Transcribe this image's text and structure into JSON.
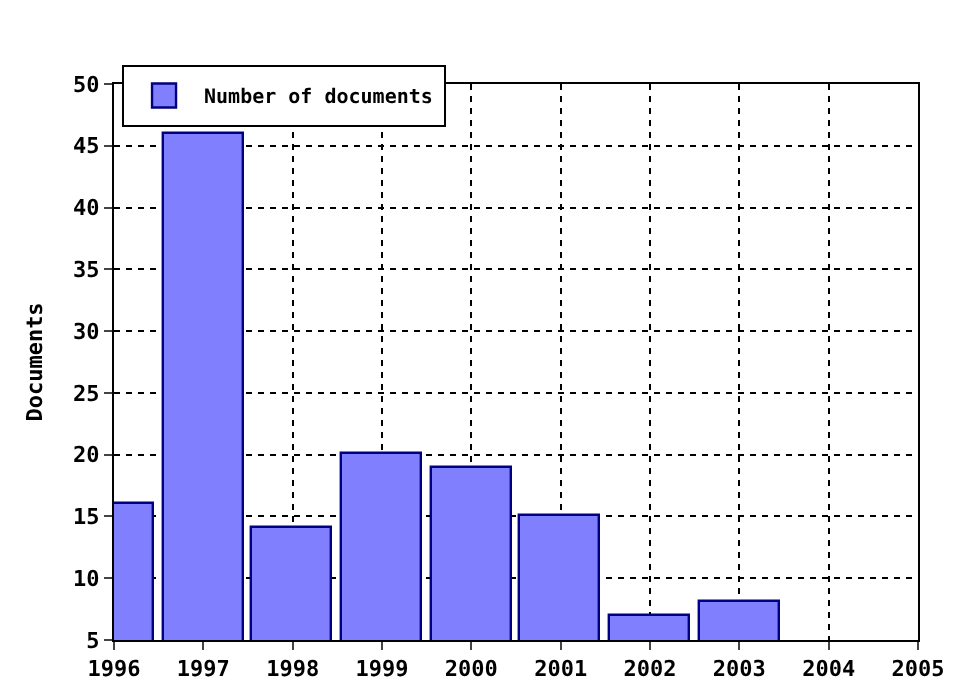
{
  "chart_data": {
    "type": "bar",
    "ylabel": "Documents",
    "x": [
      1996,
      1997,
      1998,
      1999,
      2000,
      2001,
      2002,
      2003
    ],
    "series": [
      {
        "name": "Number of documents",
        "color": "#8080ff",
        "values": [
          16,
          46,
          14,
          20,
          19,
          15,
          7,
          8
        ]
      }
    ],
    "xlim": [
      1996,
      2005
    ],
    "xticks": [
      1996,
      1997,
      1998,
      1999,
      2000,
      2001,
      2002,
      2003,
      2004,
      2005
    ],
    "ylim": [
      5,
      50
    ],
    "yticks": [
      5,
      10,
      15,
      20,
      25,
      30,
      35,
      40,
      45,
      50
    ],
    "grid": true,
    "line_style": "dotted",
    "legend": "top left"
  }
}
